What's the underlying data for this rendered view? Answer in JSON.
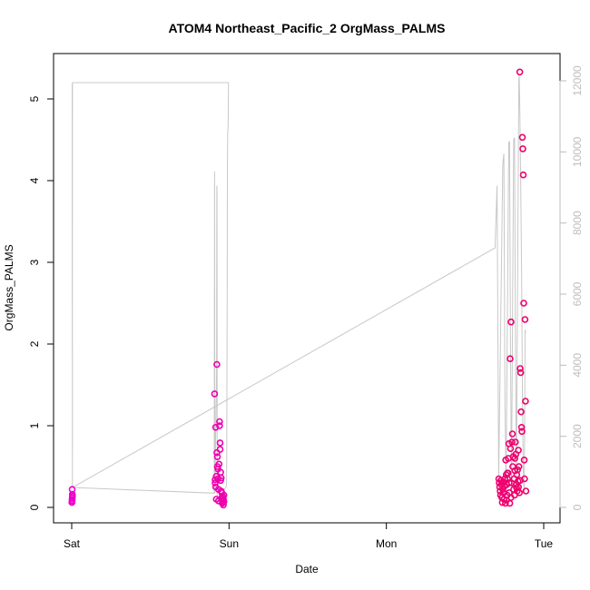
{
  "chart_data": {
    "type": "scatter",
    "title": "ATOM4 Northeast_Pacific_2 OrgMass_PALMS",
    "xlabel": "Date",
    "ylabel": "OrgMass_PALMS",
    "x_axis_kind": "date",
    "xlim": [
      "Sat 00:00",
      "Tue 00:00"
    ],
    "x_ticks": [
      "Sat",
      "Sun",
      "Mon",
      "Tue"
    ],
    "ylim": [
      0,
      5.5
    ],
    "y_ticks": [
      0,
      1,
      2,
      3,
      4,
      5
    ],
    "y2lim": [
      0,
      12500
    ],
    "y2_ticks": [
      0,
      2000,
      4000,
      6000,
      8000,
      10000,
      12000
    ],
    "grid": false,
    "legend": "none",
    "colors": {
      "points_early": "#ee00cc",
      "points_late": "#ee0066",
      "altitude_line": "#c8c8c8"
    },
    "series": [
      {
        "kind": "points",
        "axis": "left",
        "points": [
          [
            "Sat 00:02",
            0.06
          ],
          [
            "Sat 00:03",
            0.08
          ],
          [
            "Sat 00:04",
            0.1
          ],
          [
            "Sat 00:04",
            0.22
          ],
          [
            "Sat 00:05",
            0.12
          ],
          [
            "Sat 00:06",
            0.16
          ],
          [
            "Sat 00:07",
            0.14
          ],
          [
            "Sat 21:48",
            1.39
          ],
          [
            "Sat 21:53",
            0.34
          ],
          [
            "Sat 21:53",
            0.3
          ],
          [
            "Sat 21:58",
            0.25
          ],
          [
            "Sat 21:58",
            0.98
          ],
          [
            "Sat 22:03",
            0.38
          ],
          [
            "Sat 22:03",
            0.1
          ],
          [
            "Sat 22:08",
            1.75
          ],
          [
            "Sat 22:08",
            0.67
          ],
          [
            "Sat 22:13",
            0.5
          ],
          [
            "Sat 22:13",
            0.62
          ],
          [
            "Sat 22:18",
            0.47
          ],
          [
            "Sat 22:18",
            0.35
          ],
          [
            "Sat 22:23",
            0.22
          ],
          [
            "Sat 22:23",
            0.08
          ],
          [
            "Sat 22:28",
            0.53
          ],
          [
            "Sat 22:33",
            1.05
          ],
          [
            "Sat 22:33",
            1.0
          ],
          [
            "Sat 22:38",
            0.79
          ],
          [
            "Sat 22:38",
            0.71
          ],
          [
            "Sat 22:43",
            0.43
          ],
          [
            "Sat 22:43",
            0.33
          ],
          [
            "Sat 22:48",
            0.2
          ],
          [
            "Sat 22:48",
            0.36
          ],
          [
            "Sat 22:53",
            0.18
          ],
          [
            "Sat 22:53",
            0.12
          ],
          [
            "Sat 22:58",
            0.08
          ],
          [
            "Sat 22:58",
            0.05
          ],
          [
            "Sat 23:03",
            0.13
          ],
          [
            "Sat 23:03",
            0.06
          ],
          [
            "Sat 23:08",
            0.03
          ],
          [
            "Sat 23:08",
            0.1
          ],
          [
            "Sat 23:13",
            0.15
          ],
          [
            "Sat 23:13",
            0.07
          ],
          [
            "Mon 17:09",
            0.35
          ],
          [
            "Mon 17:13",
            0.3
          ],
          [
            "Mon 17:17",
            0.25
          ],
          [
            "Mon 17:21",
            0.2
          ],
          [
            "Mon 17:25",
            0.15
          ],
          [
            "Mon 17:29",
            0.33
          ],
          [
            "Mon 17:33",
            0.28
          ],
          [
            "Mon 17:37",
            0.12
          ],
          [
            "Mon 17:41",
            0.06
          ],
          [
            "Mon 17:45",
            0.22
          ],
          [
            "Mon 17:49",
            0.3
          ],
          [
            "Mon 17:53",
            0.18
          ],
          [
            "Mon 17:57",
            0.1
          ],
          [
            "Mon 18:01",
            0.26
          ],
          [
            "Mon 18:05",
            0.35
          ],
          [
            "Mon 18:09",
            0.05
          ],
          [
            "Mon 18:13",
            0.58
          ],
          [
            "Mon 18:17",
            0.4
          ],
          [
            "Mon 18:21",
            0.28
          ],
          [
            "Mon 18:25",
            0.15
          ],
          [
            "Mon 18:29",
            0.35
          ],
          [
            "Mon 18:33",
            0.42
          ],
          [
            "Mon 18:37",
            0.6
          ],
          [
            "Mon 18:41",
            0.78
          ],
          [
            "Mon 18:45",
            0.18
          ],
          [
            "Mon 18:49",
            0.05
          ],
          [
            "Mon 18:53",
            1.82
          ],
          [
            "Mon 18:57",
            0.72
          ],
          [
            "Mon 19:01",
            2.27
          ],
          [
            "Mon 19:05",
            0.3
          ],
          [
            "Mon 19:09",
            0.8
          ],
          [
            "Mon 19:13",
            0.9
          ],
          [
            "Mon 19:17",
            0.5
          ],
          [
            "Mon 19:21",
            0.62
          ],
          [
            "Mon 19:25",
            0.22
          ],
          [
            "Mon 19:29",
            0.35
          ],
          [
            "Mon 19:33",
            0.15
          ],
          [
            "Mon 19:37",
            0.45
          ],
          [
            "Mon 19:41",
            0.8
          ],
          [
            "Mon 19:45",
            0.65
          ],
          [
            "Mon 19:49",
            0.28
          ],
          [
            "Mon 19:53",
            0.4
          ],
          [
            "Mon 19:57",
            0.2
          ],
          [
            "Mon 20:01",
            0.46
          ],
          [
            "Mon 20:05",
            0.32
          ],
          [
            "Mon 20:09",
            0.25
          ],
          [
            "Mon 20:13",
            0.5
          ],
          [
            "Mon 20:17",
            0.18
          ],
          [
            "Mon 20:21",
            5.33
          ],
          [
            "Mon 20:25",
            1.7
          ],
          [
            "Mon 20:29",
            1.65
          ],
          [
            "Mon 20:33",
            1.17
          ],
          [
            "Mon 20:37",
            0.98
          ],
          [
            "Mon 20:41",
            0.93
          ],
          [
            "Mon 20:45",
            4.53
          ],
          [
            "Mon 20:49",
            4.39
          ],
          [
            "Mon 20:53",
            4.07
          ],
          [
            "Mon 20:57",
            2.5
          ],
          [
            "Mon 21:01",
            0.58
          ],
          [
            "Mon 21:05",
            0.35
          ],
          [
            "Mon 21:09",
            2.3
          ],
          [
            "Mon 21:13",
            1.3
          ],
          [
            "Mon 21:17",
            0.2
          ],
          [
            "Mon 18:20",
            0.09
          ],
          [
            "Mon 18:28",
            0.42
          ],
          [
            "Mon 18:44",
            0.3
          ],
          [
            "Mon 19:00",
            0.12
          ],
          [
            "Mon 19:36",
            0.6
          ],
          [
            "Mon 19:52",
            0.24
          ],
          [
            "Mon 20:08",
            0.7
          ],
          [
            "Mon 20:24",
            0.33
          ]
        ]
      },
      {
        "kind": "line",
        "axis": "right",
        "points": [
          [
            "Sat 00:00",
            11900
          ],
          [
            "Sat 00:04",
            11900
          ],
          [
            "Sat 00:07",
            560
          ],
          [
            "Sat 00:07",
            11950
          ],
          [
            "Sat 23:55",
            11950
          ],
          [
            "Sat 23:55",
            11900
          ],
          [
            "Sat 23:53",
            11150
          ],
          [
            "Sat 23:51",
            10700
          ],
          [
            "Sat 23:49",
            10600
          ],
          [
            "Sat 23:47",
            10450
          ],
          [
            "Sat 23:45",
            9400
          ],
          [
            "Sat 23:43",
            6000
          ],
          [
            "Sat 23:41",
            3500
          ],
          [
            "Sat 23:39",
            1500
          ],
          [
            "Sat 23:37",
            600
          ],
          [
            "Sat 22:12",
            200
          ],
          [
            "Sat 22:10",
            8900
          ],
          [
            "Sat 22:08",
            9050
          ],
          [
            "Sat 22:06",
            3800
          ],
          [
            "Sat 21:50",
            400
          ],
          [
            "Sat 21:48",
            9450
          ],
          [
            "Sat 21:46",
            5000
          ],
          [
            "Sat 21:44",
            400
          ],
          [
            "Sat 00:07",
            560
          ],
          [
            "Mon 16:35",
            7300
          ],
          [
            "Mon 16:53",
            9050
          ],
          [
            "Mon 17:00",
            5500
          ],
          [
            "Mon 17:08",
            800
          ],
          [
            "Mon 17:45",
            9650
          ],
          [
            "Mon 17:55",
            9950
          ],
          [
            "Mon 18:05",
            3000
          ],
          [
            "Mon 18:15",
            500
          ],
          [
            "Mon 18:40",
            10250
          ],
          [
            "Mon 18:48",
            10300
          ],
          [
            "Mon 18:56",
            4500
          ],
          [
            "Mon 19:05",
            600
          ],
          [
            "Mon 19:25",
            10350
          ],
          [
            "Mon 19:33",
            10400
          ],
          [
            "Mon 19:41",
            5000
          ],
          [
            "Mon 19:50",
            700
          ],
          [
            "Mon 20:12",
            12000
          ],
          [
            "Mon 20:16",
            12150
          ],
          [
            "Mon 20:22",
            11000
          ],
          [
            "Mon 20:30",
            9000
          ],
          [
            "Mon 20:38",
            6500
          ],
          [
            "Mon 20:46",
            3000
          ],
          [
            "Mon 20:54",
            800
          ],
          [
            "Mon 21:02",
            400
          ],
          [
            "Mon 21:10",
            5000
          ],
          [
            "Mon 21:14",
            4900
          ]
        ]
      }
    ]
  }
}
